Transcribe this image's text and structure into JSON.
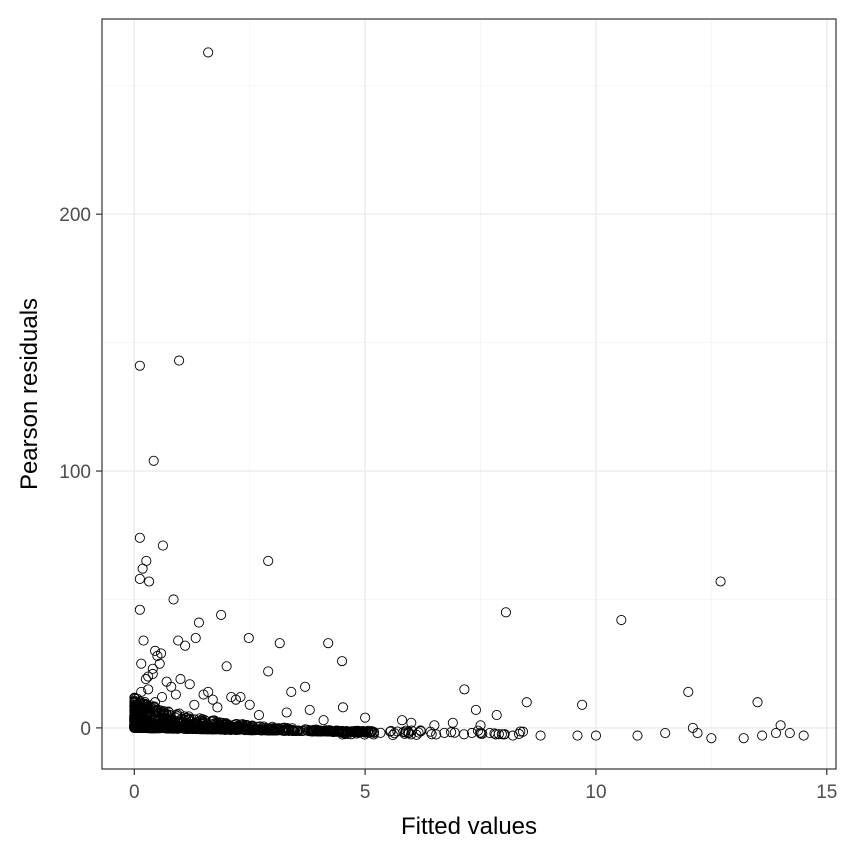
{
  "chart_data": {
    "type": "scatter",
    "title": "",
    "xlabel": "Fitted values",
    "ylabel": "Pearson residuals",
    "xlim": [
      -0.7,
      15.2
    ],
    "ylim": [
      -16,
      276
    ],
    "x_ticks": [
      0,
      5,
      10,
      15
    ],
    "y_ticks": [
      0,
      100,
      200
    ],
    "x_tick_labels": [
      "0",
      "5",
      "10",
      "15"
    ],
    "y_tick_labels": [
      "0",
      "100",
      "200"
    ],
    "grid": true,
    "legend": "none",
    "point_shape": "open-circle",
    "colors": {
      "point": "#000000",
      "grid": "#ebebeb",
      "border": "#333333",
      "tick_text": "#4d4d4d"
    },
    "series": [
      {
        "x": [
          1.6,
          0.97,
          0.12,
          0.42,
          0.12,
          0.62,
          0.18,
          2.9,
          0.32,
          0.26,
          0.12,
          12.7,
          0.12,
          8.05,
          1.88,
          10.55,
          0.85,
          1.4,
          1.33,
          2.48,
          0.2,
          0.95,
          1.1,
          3.15,
          0.45,
          4.2,
          0.5,
          0.55,
          0.58,
          0.4,
          0.3,
          4.5,
          2.9,
          0.8,
          0.15,
          7.15,
          12.0,
          8.5,
          9.7,
          13.5,
          2.3,
          3.7,
          7.4,
          7.85,
          4.52,
          5.8,
          6.0,
          6.5,
          6.9,
          7.5,
          12.1,
          14.0,
          3.4,
          2.1,
          2.5,
          1.6,
          1.2,
          0.7,
          0.3,
          0.9,
          1.8,
          5.0,
          0.4,
          0.25,
          3.3,
          2.0,
          0.6,
          1.0,
          2.2,
          1.5,
          0.35,
          0.75,
          0.15,
          1.3,
          2.7,
          4.1,
          3.8,
          1.7,
          0.45,
          0.22,
          6.2,
          7.7,
          8.2,
          8.8,
          9.6,
          10.0,
          10.9,
          11.5,
          12.2,
          12.5,
          13.2,
          13.6,
          14.5,
          14.2,
          13.9
        ],
        "y": [
          263,
          143,
          141,
          104,
          74,
          71,
          62,
          65,
          57,
          65,
          58,
          57,
          46,
          45,
          44,
          42,
          50,
          41,
          35,
          35,
          34,
          34,
          32,
          33,
          30,
          33,
          28,
          25,
          29,
          23,
          20,
          26,
          22,
          16,
          25,
          15,
          14,
          10,
          9,
          10,
          12,
          16,
          7,
          5,
          8,
          3,
          2,
          1,
          2,
          1,
          0,
          1,
          14,
          12,
          9,
          14,
          17,
          18,
          15,
          13,
          8,
          4,
          21,
          19,
          6,
          24,
          12,
          19,
          11,
          13,
          8,
          6,
          14,
          9,
          5,
          3,
          7,
          11,
          10,
          9,
          -1,
          -2,
          -3,
          -3,
          -3,
          -3,
          -3,
          -2,
          -2,
          -4,
          -4,
          -3,
          -3,
          -2,
          -2
        ]
      }
    ]
  }
}
